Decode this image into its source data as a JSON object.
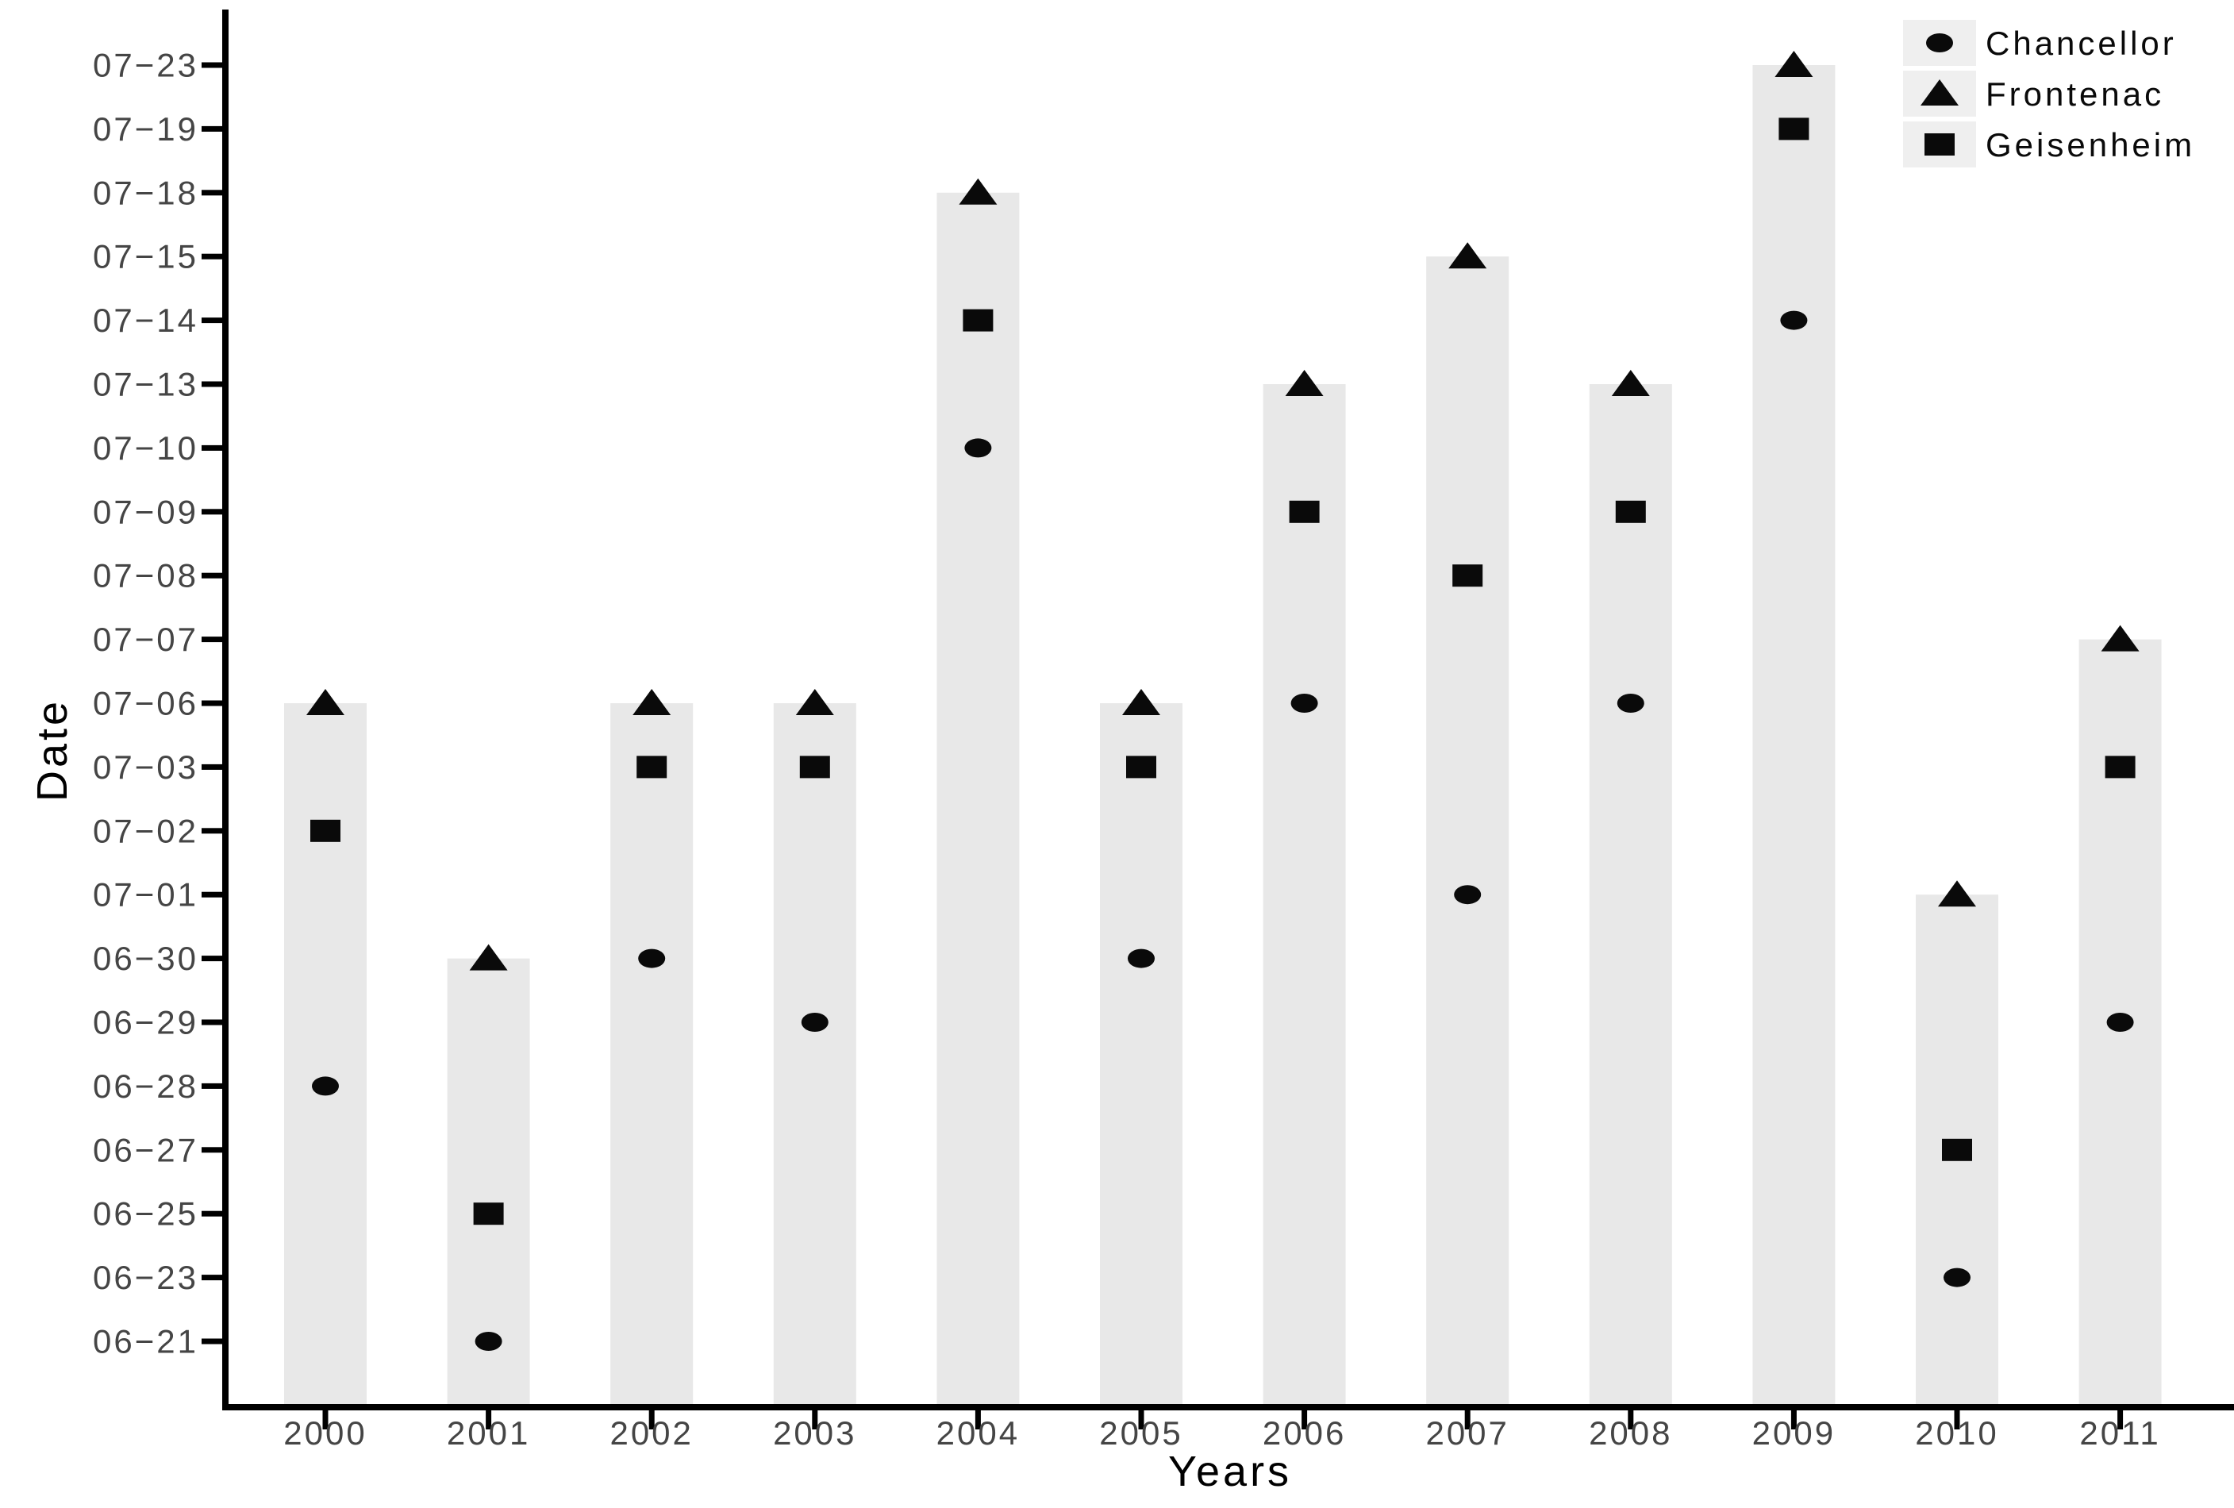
{
  "chart_data": {
    "type": "scatter",
    "title": "",
    "xlabel": "Years",
    "ylabel": "Date",
    "x_categories": [
      "2000",
      "2001",
      "2002",
      "2003",
      "2004",
      "2005",
      "2006",
      "2007",
      "2008",
      "2009",
      "2010",
      "2011"
    ],
    "y_categories": [
      "06-21",
      "06-23",
      "06-25",
      "06-27",
      "06-28",
      "06-29",
      "06-30",
      "07-01",
      "07-02",
      "07-03",
      "07-06",
      "07-07",
      "07-08",
      "07-09",
      "07-10",
      "07-13",
      "07-14",
      "07-15",
      "07-18",
      "07-19",
      "07-23"
    ],
    "y_tick_dash": "−",
    "series": [
      {
        "name": "Chancellor",
        "marker": "circle",
        "values": [
          "06-28",
          "06-21",
          "06-30",
          "06-29",
          "07-10",
          "06-30",
          "07-06",
          "07-01",
          "07-06",
          "07-14",
          "06-23",
          "06-29"
        ]
      },
      {
        "name": "Frontenac",
        "marker": "triangle",
        "values": [
          "07-06",
          "06-30",
          "07-06",
          "07-06",
          "07-18",
          "07-06",
          "07-13",
          "07-15",
          "07-13",
          "07-23",
          "07-01",
          "07-07"
        ]
      },
      {
        "name": "Geisenheim",
        "marker": "square",
        "values": [
          "07-02",
          "06-25",
          "07-03",
          "07-03",
          "07-14",
          "07-03",
          "07-09",
          "07-08",
          "07-09",
          "07-19",
          "06-27",
          "07-03"
        ]
      }
    ],
    "bars": {
      "from": "axis-bottom",
      "to_series": "Frontenac"
    },
    "legend": {
      "position": "top-right",
      "entries": [
        "Chancellor",
        "Frontenac",
        "Geisenheim"
      ]
    },
    "grid": "off",
    "colors": {
      "bar": "#e8e8e8",
      "legend_key": "#efefef",
      "marker": "#0a0a0a",
      "axis": "#000000",
      "tick_label": "#454545",
      "title": "#000000",
      "background": "#ffffff"
    }
  }
}
